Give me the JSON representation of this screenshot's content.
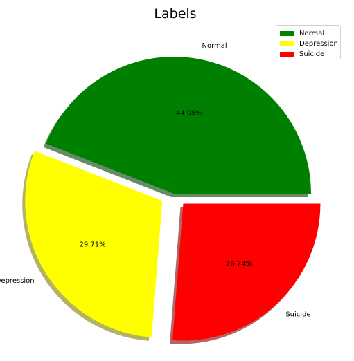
{
  "chart_data": {
    "type": "pie",
    "title": "Labels",
    "slices": [
      {
        "label": "Normal",
        "value": 44.05,
        "pct_label": "44.05%",
        "color": "#008000",
        "explode": 0.0
      },
      {
        "label": "Depression",
        "value": 29.71,
        "pct_label": "29.71%",
        "color": "#ffff00",
        "explode": 0.1
      },
      {
        "label": "Suicide",
        "value": 26.24,
        "pct_label": "26.24%",
        "color": "#ff0000",
        "explode": 0.1
      }
    ],
    "shadow": true,
    "legend": {
      "placement": "top-right",
      "entries": [
        "Normal",
        "Depression",
        "Suicide"
      ]
    }
  }
}
